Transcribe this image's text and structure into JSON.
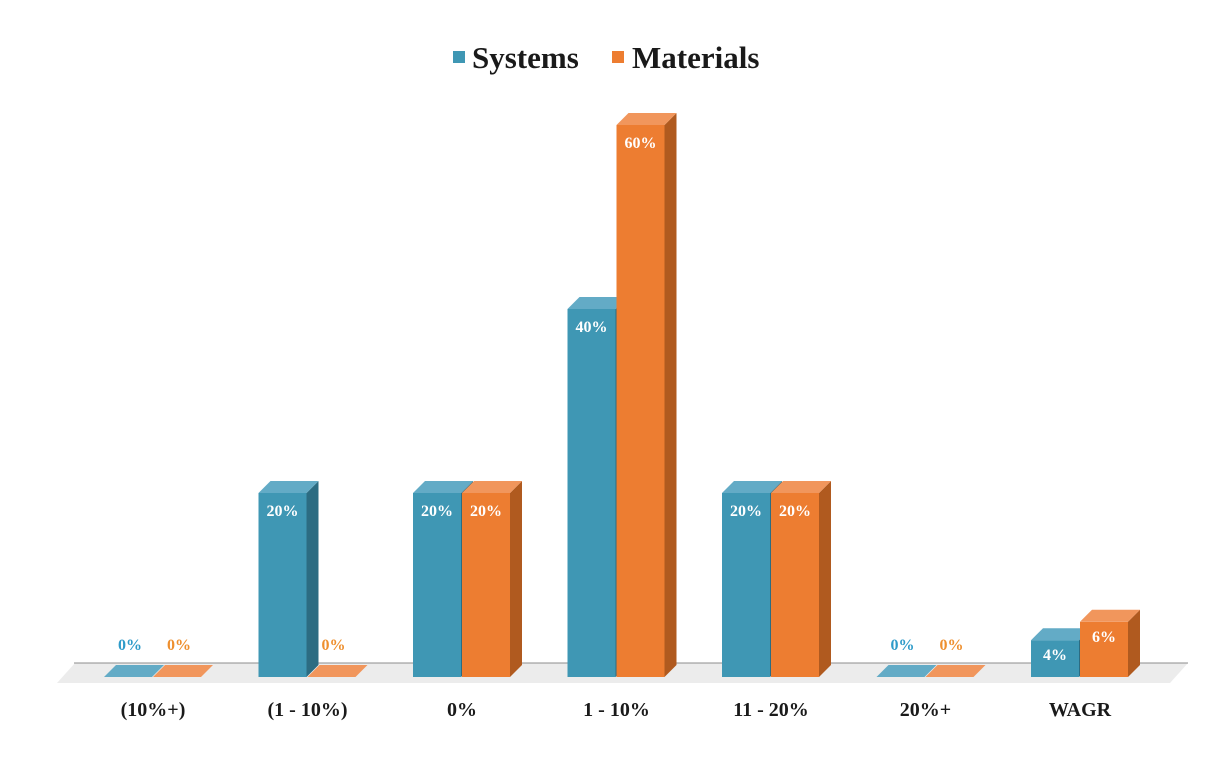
{
  "chart_data": {
    "type": "bar",
    "title": "",
    "xlabel": "",
    "ylabel": "",
    "ylim": [
      0,
      60
    ],
    "legend_position": "top-center",
    "categories": [
      "(10%+)",
      "(1 - 10%)",
      "0%",
      "1 - 10%",
      "11 - 20%",
      "20%+",
      "WAGR"
    ],
    "series": [
      {
        "name": "Systems",
        "values": [
          0,
          20,
          20,
          40,
          20,
          0,
          4
        ],
        "labels": [
          "0%",
          "20%",
          "20%",
          "40%",
          "20%",
          "0%",
          "4%"
        ],
        "color": "#3f97b4",
        "top_color": "#63abc6",
        "side_color": "#2c6c82",
        "zero_label_color": "#2e9bc9"
      },
      {
        "name": "Materials",
        "values": [
          0,
          0,
          20,
          60,
          20,
          0,
          6
        ],
        "labels": [
          "0%",
          "0%",
          "20%",
          "60%",
          "20%",
          "0%",
          "6%"
        ],
        "color": "#ed7d31",
        "top_color": "#f1965c",
        "side_color": "#b05a1f",
        "zero_label_color": "#ee8f2e"
      }
    ],
    "value_label_color": "#ffffff",
    "floor_color": "#ececec",
    "baseline_color": "#8c8c8c"
  }
}
